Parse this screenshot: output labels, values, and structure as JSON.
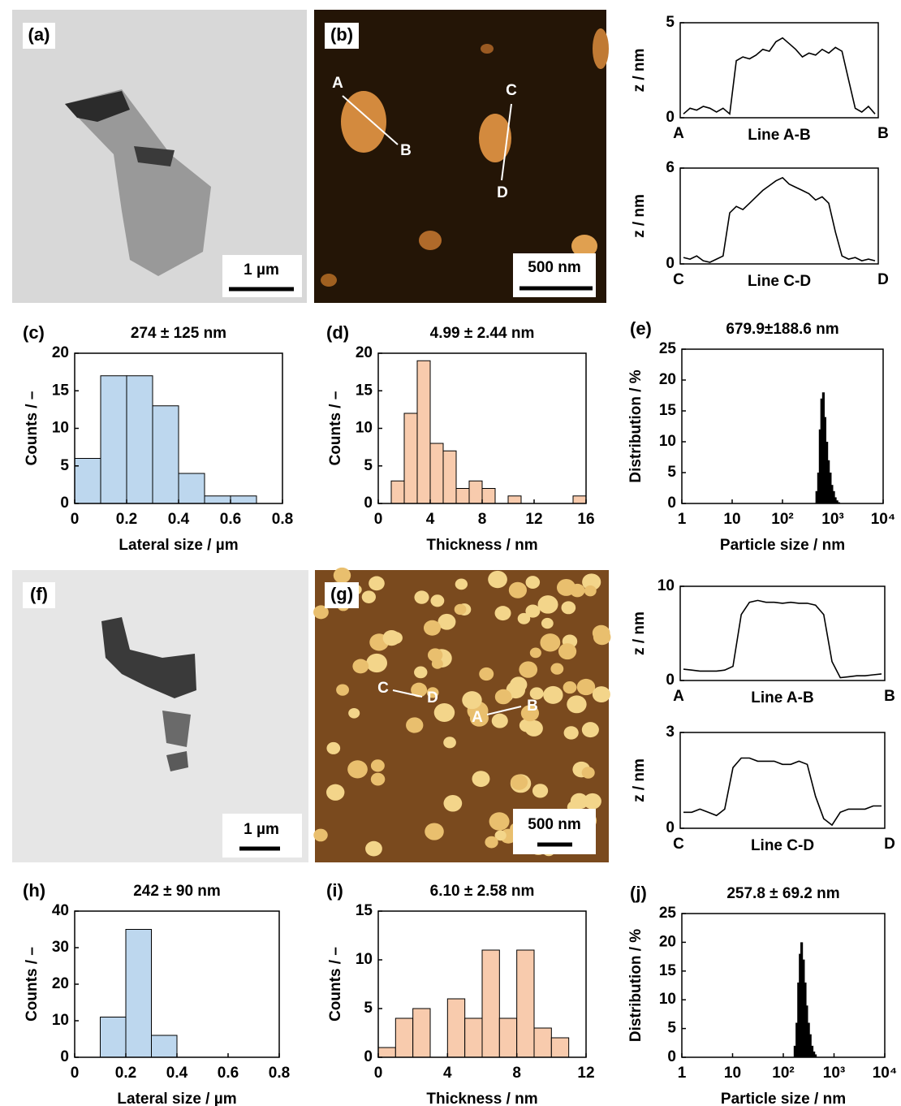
{
  "chart_data": [
    {
      "type": "line",
      "ylabel": "z / nm",
      "xlabel": "Line A-B",
      "start_label": "A",
      "end_label": "B",
      "ylim": [
        0,
        5
      ],
      "yticks": [
        0,
        5
      ],
      "color": "#000000",
      "values": [
        0.2,
        0.5,
        0.4,
        0.6,
        0.5,
        0.3,
        0.5,
        0.2,
        3.0,
        3.2,
        3.1,
        3.3,
        3.6,
        3.5,
        4.0,
        4.2,
        3.9,
        3.6,
        3.2,
        3.4,
        3.3,
        3.6,
        3.4,
        3.7,
        3.5,
        2.0,
        0.5,
        0.3,
        0.6,
        0.2
      ]
    },
    {
      "type": "line",
      "ylabel": "z / nm",
      "xlabel": "Line C-D",
      "start_label": "C",
      "end_label": "D",
      "ylim": [
        0,
        6
      ],
      "yticks": [
        0,
        6
      ],
      "color": "#000000",
      "values": [
        0.4,
        0.3,
        0.5,
        0.2,
        0.1,
        0.3,
        0.5,
        3.2,
        3.6,
        3.4,
        3.8,
        4.2,
        4.6,
        4.9,
        5.2,
        5.4,
        5.0,
        4.8,
        4.6,
        4.4,
        4.0,
        4.2,
        3.8,
        2.0,
        0.5,
        0.3,
        0.4,
        0.2,
        0.3,
        0.2
      ]
    },
    {
      "type": "histogram",
      "panel": "(c)",
      "title": "274 ± 125 nm",
      "xlabel": "Lateral size / µm",
      "ylabel": "Counts / –",
      "color": "#bdd7ee",
      "bins": [
        0,
        0.1,
        0.2,
        0.3,
        0.4,
        0.5,
        0.6,
        0.7
      ],
      "values": [
        6,
        17,
        17,
        13,
        4,
        1,
        1
      ],
      "xlim": [
        0,
        0.8
      ],
      "xticks": [
        0,
        0.2,
        0.4,
        0.6,
        0.8
      ],
      "ylim": [
        0,
        20
      ],
      "yticks": [
        0,
        5,
        10,
        15,
        20
      ]
    },
    {
      "type": "histogram",
      "panel": "(d)",
      "title": "4.99 ± 2.44 nm",
      "xlabel": "Thickness / nm",
      "ylabel": "Counts / –",
      "color": "#f8cbad",
      "bins": [
        1,
        2,
        3,
        4,
        5,
        6,
        7,
        8,
        9,
        10,
        11,
        12,
        13,
        14,
        15,
        16
      ],
      "values": [
        3,
        12,
        19,
        8,
        7,
        2,
        3,
        2,
        0,
        1,
        0,
        0,
        0,
        0,
        1
      ],
      "xlim": [
        0,
        16
      ],
      "xticks": [
        0,
        4,
        8,
        12,
        16
      ],
      "ylim": [
        0,
        20
      ],
      "yticks": [
        0,
        5,
        10,
        15,
        20
      ]
    },
    {
      "type": "bar",
      "xscale": "log",
      "panel": "(e)",
      "title": "679.9±188.6 nm",
      "xlabel": "Particle size / nm",
      "ylabel": "Distribution / %",
      "color": "#000000",
      "x": [
        480,
        520,
        560,
        600,
        650,
        700,
        760,
        820,
        890,
        960,
        1040,
        1120,
        1210,
        1310
      ],
      "values": [
        2,
        5,
        12,
        17,
        18,
        14,
        10,
        7,
        5,
        3,
        2,
        1,
        0.5,
        0.2
      ],
      "xlim": [
        1,
        10000
      ],
      "xticks": [
        1,
        10,
        {
          "value": 100,
          "label": "10²"
        },
        {
          "value": 1000,
          "label": "10³"
        },
        {
          "value": 10000,
          "label": "10⁴"
        }
      ],
      "ylim": [
        0,
        25
      ],
      "yticks": [
        0,
        5,
        10,
        15,
        20,
        25
      ]
    },
    {
      "type": "line",
      "ylabel": "z / nm",
      "xlabel": "Line A-B",
      "start_label": "A",
      "end_label": "B",
      "ylim": [
        0,
        10
      ],
      "yticks": [
        0,
        10
      ],
      "color": "#000000",
      "values": [
        1.2,
        1.1,
        1.0,
        1.0,
        1.0,
        1.1,
        1.5,
        7.0,
        8.3,
        8.5,
        8.3,
        8.3,
        8.2,
        8.3,
        8.2,
        8.2,
        8.0,
        7.0,
        2.0,
        0.3,
        0.4,
        0.5,
        0.5,
        0.6,
        0.7
      ]
    },
    {
      "type": "line",
      "ylabel": "z / nm",
      "xlabel": "Line C-D",
      "start_label": "C",
      "end_label": "D",
      "ylim": [
        0,
        3
      ],
      "yticks": [
        0,
        3
      ],
      "color": "#000000",
      "values": [
        0.5,
        0.5,
        0.6,
        0.5,
        0.4,
        0.6,
        1.9,
        2.2,
        2.2,
        2.1,
        2.1,
        2.1,
        2.0,
        2.0,
        2.1,
        2.0,
        1.0,
        0.3,
        0.1,
        0.5,
        0.6,
        0.6,
        0.6,
        0.7,
        0.7
      ]
    },
    {
      "type": "histogram",
      "panel": "(h)",
      "title": "242 ± 90 nm",
      "xlabel": "Lateral size / µm",
      "ylabel": "Counts / –",
      "color": "#bdd7ee",
      "bins": [
        0.1,
        0.2,
        0.3,
        0.4
      ],
      "values": [
        11,
        35,
        6
      ],
      "xlim": [
        0,
        0.8
      ],
      "xticks": [
        0,
        0.2,
        0.4,
        0.6,
        0.8
      ],
      "ylim": [
        0,
        40
      ],
      "yticks": [
        0,
        10,
        20,
        30,
        40
      ]
    },
    {
      "type": "histogram",
      "panel": "(i)",
      "title": "6.10 ± 2.58 nm",
      "xlabel": "Thickness / nm",
      "ylabel": "Counts / –",
      "color": "#f8cbad",
      "bins": [
        0,
        1,
        2,
        3,
        4,
        5,
        6,
        7,
        8,
        9,
        10,
        11
      ],
      "values": [
        1,
        4,
        5,
        0,
        6,
        4,
        11,
        4,
        11,
        3,
        2
      ],
      "xlim": [
        0,
        12
      ],
      "xticks": [
        0,
        4,
        8,
        12
      ],
      "ylim": [
        0,
        15
      ],
      "yticks": [
        0,
        5,
        10,
        15
      ]
    },
    {
      "type": "bar",
      "xscale": "log",
      "panel": "(j)",
      "title": "257.8 ± 69.2 nm",
      "xlabel": "Particle size / nm",
      "ylabel": "Distribution / %",
      "color": "#000000",
      "x": [
        170,
        185,
        200,
        215,
        230,
        250,
        270,
        290,
        315,
        340,
        370,
        400,
        430
      ],
      "values": [
        2,
        6,
        13,
        18,
        20,
        17,
        13,
        9,
        6,
        4,
        2,
        1,
        0.5
      ],
      "xlim": [
        1,
        10000
      ],
      "xticks": [
        1,
        10,
        {
          "value": 100,
          "label": "10²"
        },
        {
          "value": 1000,
          "label": "10³"
        },
        {
          "value": 10000,
          "label": "10⁴"
        }
      ],
      "ylim": [
        0,
        25
      ],
      "yticks": [
        0,
        5,
        10,
        15,
        20,
        25
      ]
    }
  ],
  "images": [
    {
      "panel": "(a)",
      "scale_bar": "1 µm"
    },
    {
      "panel": "(b)",
      "scale_bar": "500 nm",
      "points": [
        "A",
        "B",
        "C",
        "D"
      ]
    },
    {
      "panel": "(f)",
      "scale_bar": "1 µm"
    },
    {
      "panel": "(g)",
      "scale_bar": "500 nm",
      "points": [
        "C",
        "D",
        "A",
        "B"
      ]
    }
  ]
}
